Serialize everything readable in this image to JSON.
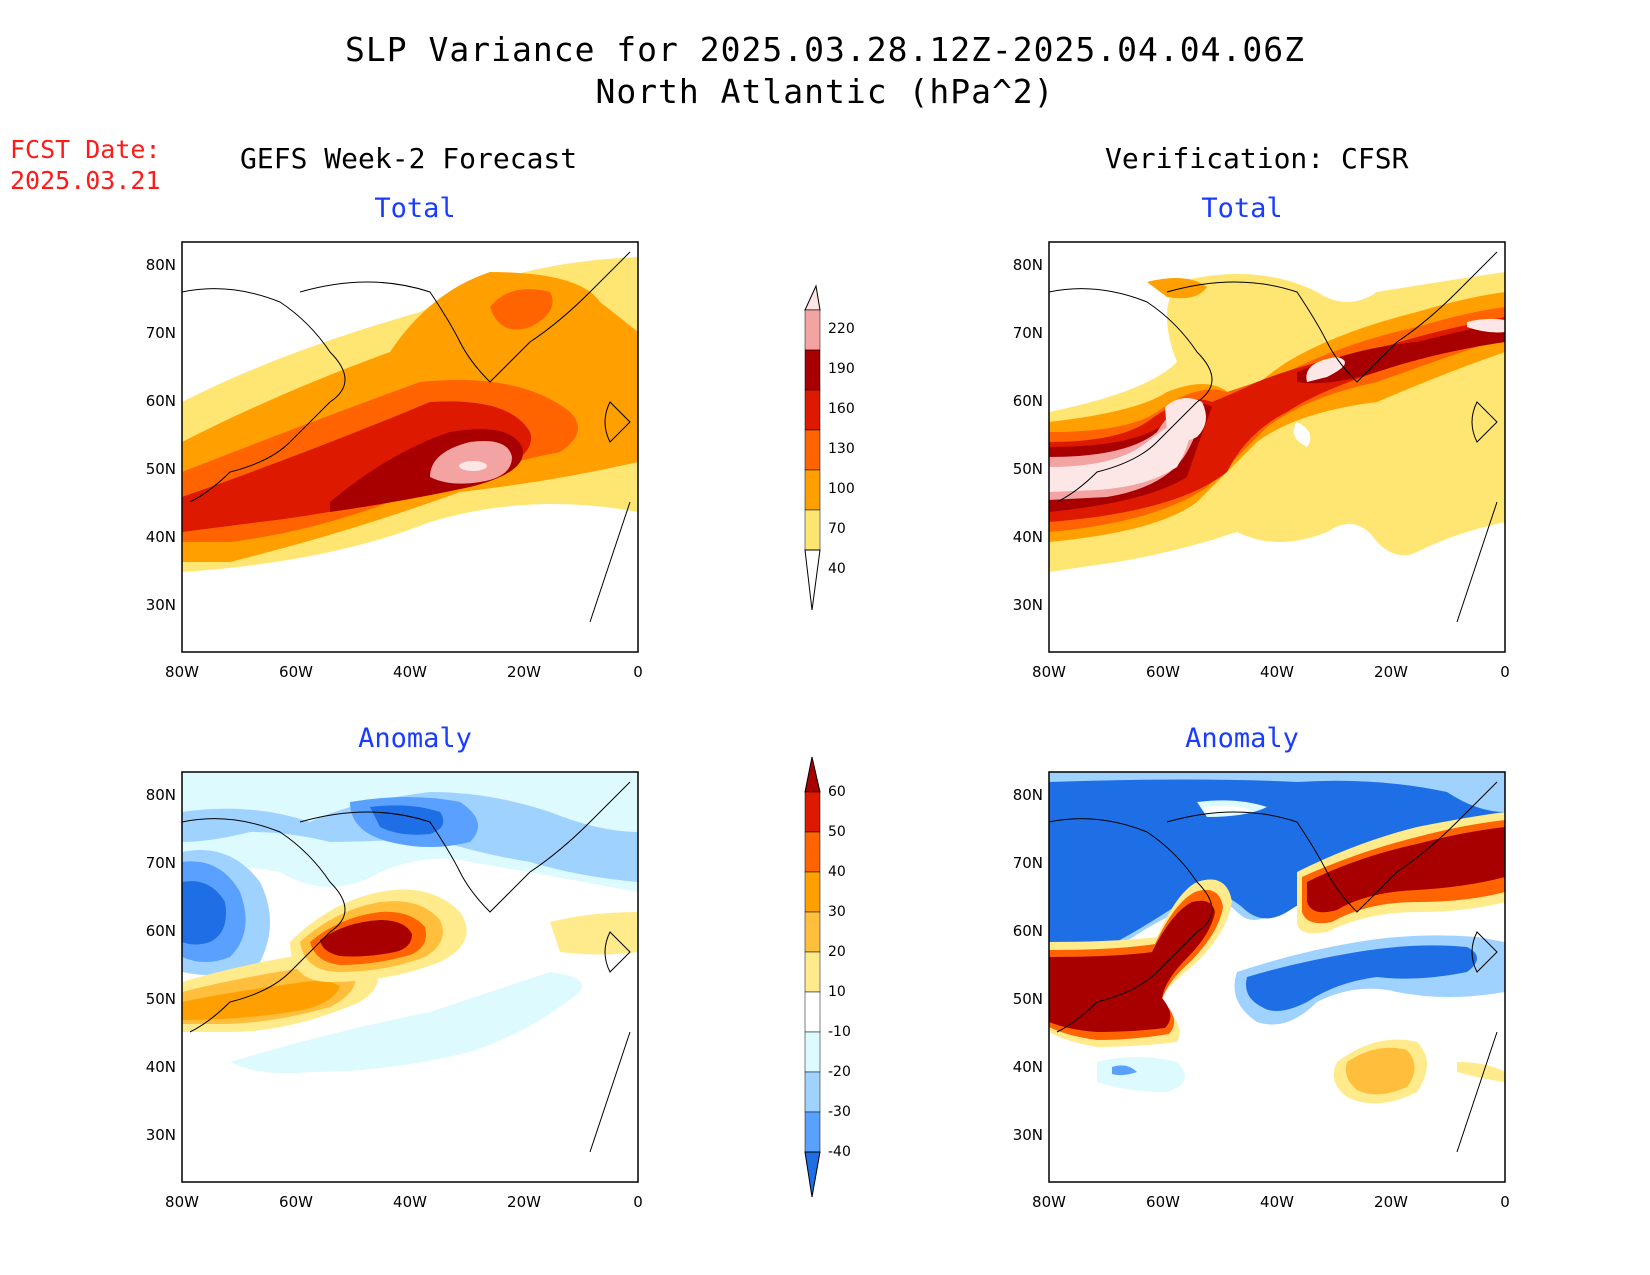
{
  "title": {
    "line1": "SLP Variance for 2025.03.28.12Z-2025.04.04.06Z",
    "line2": "North Atlantic (hPa^2)"
  },
  "forecast_date": {
    "label": "FCST Date:",
    "value": "2025.03.21"
  },
  "columns": {
    "left": "GEFS Week-2 Forecast",
    "right": "Verification: CFSR"
  },
  "panels": {
    "top_left": "Total",
    "top_right": "Total",
    "bottom_left": "Anomaly",
    "bottom_right": "Anomaly"
  },
  "axes": {
    "lat_labels": [
      "80N",
      "70N",
      "60N",
      "50N",
      "40N",
      "30N"
    ],
    "lon_labels": [
      "80W",
      "60W",
      "40W",
      "20W",
      "0"
    ]
  },
  "colorbar_total": {
    "levels": [
      "220",
      "190",
      "160",
      "130",
      "100",
      "70",
      "40"
    ],
    "colors": {
      "gt220": "#fde6e6",
      "190_220": "#f4a3a3",
      "160_190": "#a80000",
      "130_160": "#dd1a00",
      "100_130": "#ff6400",
      "70_100": "#ffa000",
      "40_70": "#ffe673",
      "lt40": "#ffffff"
    }
  },
  "colorbar_anomaly": {
    "levels": [
      "60",
      "50",
      "40",
      "30",
      "20",
      "10",
      "-10",
      "-20",
      "-30",
      "-40"
    ],
    "colors": {
      "gt60": "#a80000",
      "50_60": "#dd1a00",
      "40_50": "#ff6400",
      "30_40": "#ffa000",
      "20_30": "#ffbe3c",
      "10_20": "#ffeb8c",
      "m10_10": "#ffffff",
      "m20_m10": "#ddfaff",
      "m30_m20": "#a0d2ff",
      "m40_m30": "#5aa0ff",
      "lt_m40": "#1e6ee6"
    }
  }
}
